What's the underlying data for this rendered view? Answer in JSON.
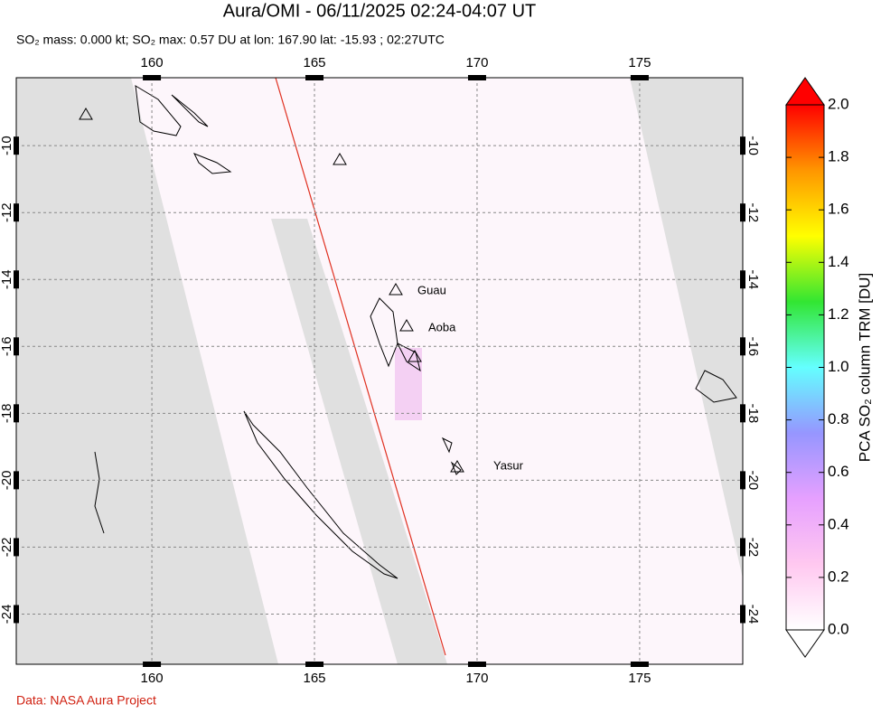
{
  "title": "Aura/OMI - 06/11/2025 02:24-04:07 UT",
  "subtitle": "SO₂ mass: 0.000 kt; SO₂ max: 0.57 DU at lon: 167.90 lat: -15.93 ; 02:27UTC",
  "map": {
    "lonlim": [
      155.83,
      178.17
    ],
    "latlim": [
      -25.5,
      -7.97
    ],
    "lon_ticks": [
      160,
      165,
      170,
      175
    ],
    "lat_ticks": [
      -10,
      -12,
      -14,
      -16,
      -18,
      -20,
      -22,
      -24
    ],
    "volcanoes": [
      "Guau",
      "Aoba",
      "Yasur"
    ]
  },
  "colorbar": {
    "label": "PCA SO₂ column TRM [DU]",
    "lim": [
      0,
      2
    ],
    "ticks": [
      {
        "value": 0,
        "label": "0.0"
      },
      {
        "value": 0.2,
        "label": "0.2"
      },
      {
        "value": 0.4,
        "label": "0.4"
      },
      {
        "value": 0.6,
        "label": "0.6"
      },
      {
        "value": 0.8,
        "label": "0.8"
      },
      {
        "value": 1,
        "label": "1.0"
      },
      {
        "value": 1.2,
        "label": "1.2"
      },
      {
        "value": 1.4,
        "label": "1.4"
      },
      {
        "value": 1.6,
        "label": "1.6"
      },
      {
        "value": 1.8,
        "label": "1.8"
      },
      {
        "value": 2,
        "label": "2.0"
      }
    ],
    "colors": [
      "#ffffff",
      "#ffc8f0",
      "#e6a0ff",
      "#9696ff",
      "#64ffff",
      "#32e632",
      "#ffff00",
      "#ff9600",
      "#ff0000"
    ]
  },
  "footer": "Data: NASA Aura Project"
}
